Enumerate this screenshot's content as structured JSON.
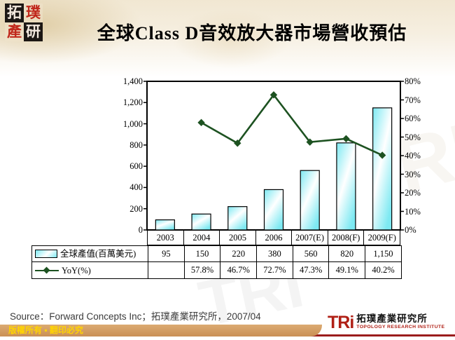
{
  "header": {
    "logo_chars": [
      "拓",
      "璞",
      "產",
      "研"
    ],
    "title": "全球Class D音效放大器市場營收預估"
  },
  "chart_data": {
    "type": "bar",
    "subtype": "bar+line combo",
    "title": "全球Class D音效放大器市場營收預估",
    "categories": [
      "2003",
      "2004",
      "2005",
      "2006",
      "2007(E)",
      "2008(F)",
      "2009(F)"
    ],
    "series": [
      {
        "name": "全球產值(百萬美元)",
        "type": "bar",
        "axis": "left",
        "values": [
          95,
          150,
          220,
          380,
          560,
          820,
          1150
        ]
      },
      {
        "name": "YoY(%)",
        "type": "line",
        "axis": "right",
        "values": [
          null,
          57.8,
          46.7,
          72.7,
          47.3,
          49.1,
          40.2
        ]
      }
    ],
    "left_axis": {
      "min": 0,
      "max": 1400,
      "step": 200
    },
    "right_axis": {
      "min": 0,
      "max": 80,
      "step": 10,
      "suffix": "%"
    },
    "grid": "off",
    "legend_position": "table below chart"
  },
  "table": {
    "rows": [
      {
        "label": "全球產值(百萬美元)",
        "swatch": "bar",
        "values": [
          "95",
          "150",
          "220",
          "380",
          "560",
          "820",
          "1,150"
        ]
      },
      {
        "label": "YoY(%)",
        "swatch": "line",
        "values": [
          "",
          "57.8%",
          "46.7%",
          "72.7%",
          "47.3%",
          "49.1%",
          "40.2%"
        ]
      }
    ]
  },
  "source": {
    "text": "Source：Forward Concepts Inc；拓璞產業研究所，2007/04"
  },
  "footer": {
    "copyright": "版權所有 ▪ 翻印必究",
    "logo_text": "TRi",
    "logo_cn": "拓璞產業研究所",
    "logo_en": "TOPOLOGY RESEARCH INSTITUTE"
  },
  "watermark": {
    "text": "TRI"
  },
  "colors": {
    "bar_fill": "#7DE9F2",
    "line": "#1D5221",
    "footer_bar": "#CE9A62",
    "maroon_line": "#9B1C1C",
    "copyright_text": "#FFD400",
    "logo_red": "#B02016",
    "band_beige": "#F1E7D2"
  }
}
